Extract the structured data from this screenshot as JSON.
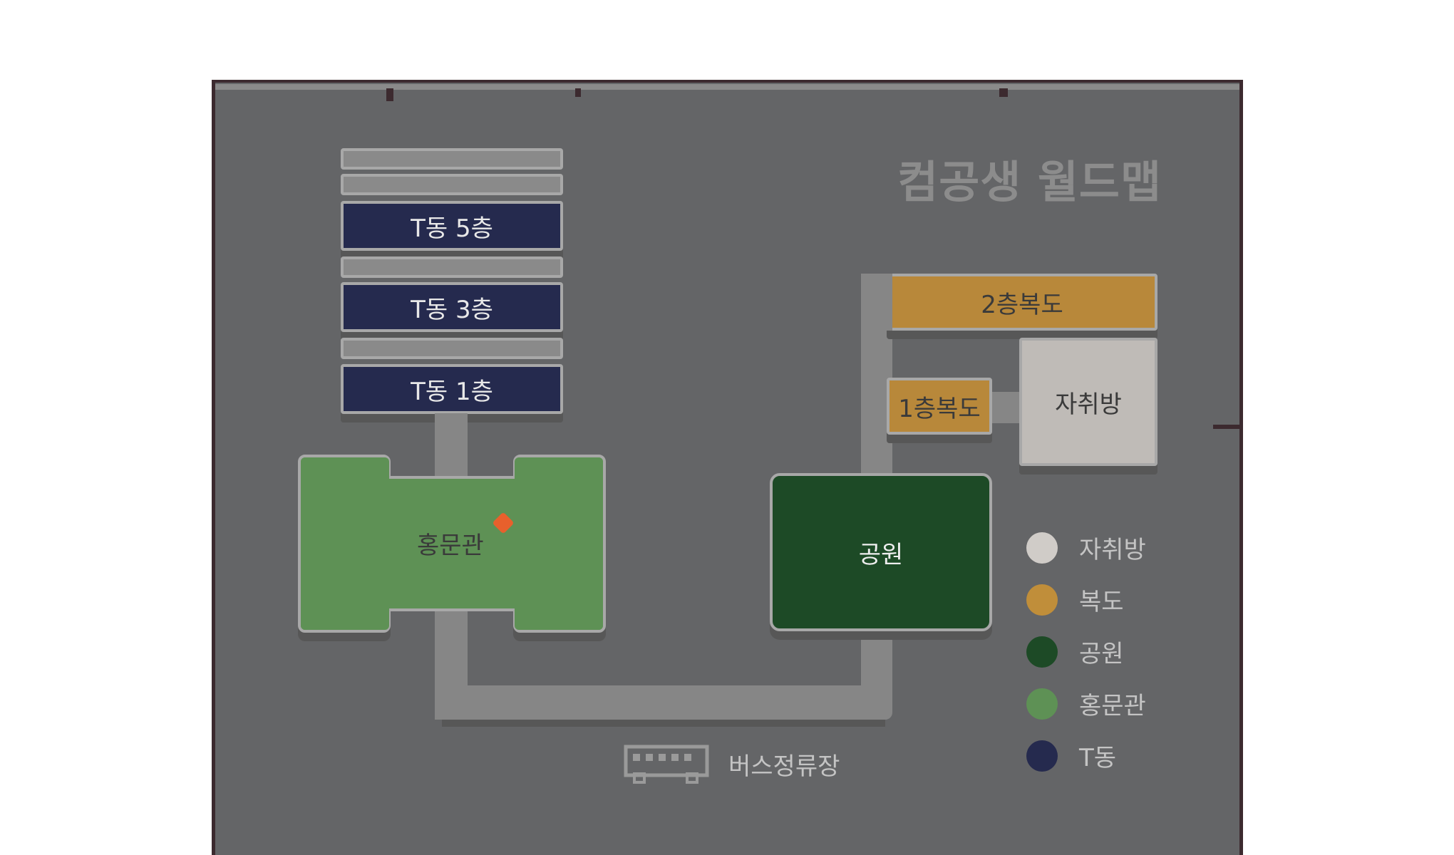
{
  "title": "컴공생 월드맵",
  "buildings": {
    "t_floors": [
      "T동 5층",
      "T동 3층",
      "T동 1층"
    ],
    "hall": "홍문관",
    "park": "공원",
    "corridor_2f": "2층복도",
    "corridor_1f": "1층복도",
    "room": "자취방",
    "bus_stop": "버스정류장"
  },
  "legend": [
    {
      "label": "자취방",
      "color": "#d0ccc8"
    },
    {
      "label": "복도",
      "color": "#c08e3a"
    },
    {
      "label": "공원",
      "color": "#1d4a26"
    },
    {
      "label": "홍문관",
      "color": "#5e9155"
    },
    {
      "label": "T동",
      "color": "#252a4e"
    }
  ],
  "player_marker_color": "#e8602c"
}
